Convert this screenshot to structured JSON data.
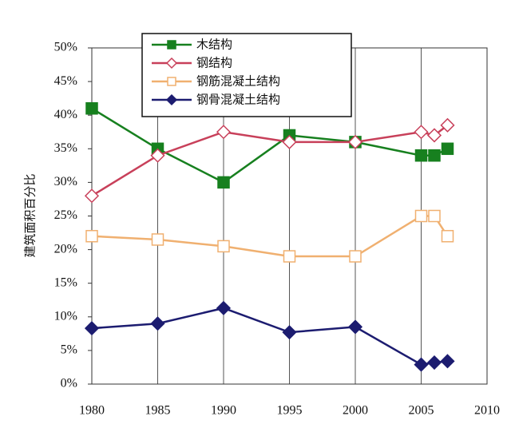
{
  "chart_data": {
    "type": "line",
    "y_label": "建筑面积百分比",
    "x": [
      1980,
      1985,
      1990,
      1995,
      2000,
      2005,
      2006,
      2007
    ],
    "series": [
      {
        "name": "木结构",
        "color": "#17801f",
        "marker": "square",
        "filled": true,
        "values": [
          41,
          35,
          30,
          37,
          36,
          34,
          34,
          35
        ]
      },
      {
        "name": "钢结构",
        "color": "#c8405a",
        "marker": "diamond",
        "filled": false,
        "values": [
          28,
          34,
          37.5,
          36,
          36,
          37.5,
          37,
          38.5
        ]
      },
      {
        "name": "钢筋混凝土结构",
        "color": "#f0b070",
        "marker": "square",
        "filled": false,
        "values": [
          22,
          21.5,
          20.5,
          19,
          19,
          25,
          25,
          22
        ]
      },
      {
        "name": "钢骨混凝土结构",
        "color": "#1c1c70",
        "marker": "diamond",
        "filled": true,
        "values": [
          8.3,
          9,
          11.3,
          7.7,
          8.5,
          2.9,
          3.2,
          3.4
        ]
      }
    ],
    "xlim": [
      1980,
      2010
    ],
    "xticks": [
      1980,
      1985,
      1990,
      1995,
      2000,
      2005,
      2010
    ],
    "ylim": [
      0,
      50
    ],
    "yticks": [
      {
        "value": 0,
        "label": "0%"
      },
      {
        "value": 5,
        "label": "5%"
      },
      {
        "value": 10,
        "label": "10%"
      },
      {
        "value": 15,
        "label": "15%"
      },
      {
        "value": 20,
        "label": "20%"
      },
      {
        "value": 25,
        "label": "25%"
      },
      {
        "value": 30,
        "label": "30%"
      },
      {
        "value": 35,
        "label": "35%"
      },
      {
        "value": 40,
        "label": "40%"
      },
      {
        "value": 45,
        "label": "45%"
      },
      {
        "value": 50,
        "label": "50%"
      }
    ],
    "grid": "x",
    "legend": "top"
  }
}
